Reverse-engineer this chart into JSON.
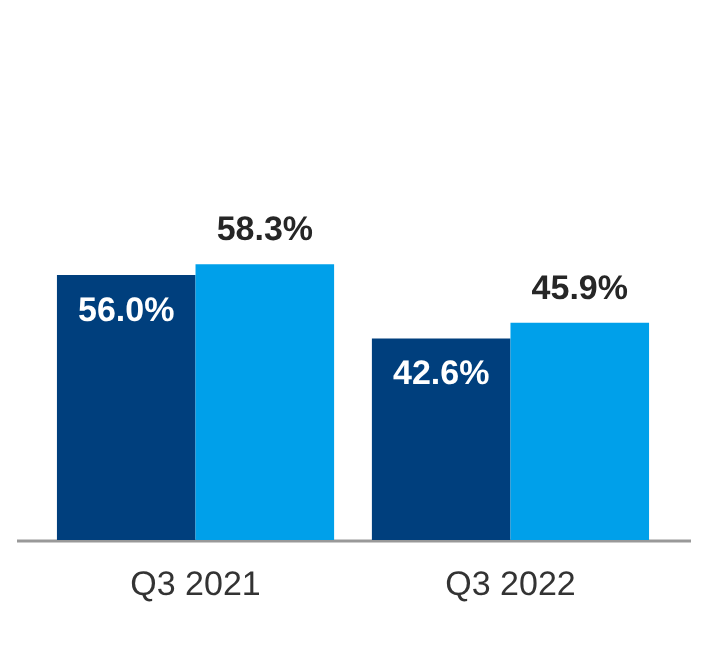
{
  "chart_data": {
    "type": "bar",
    "categories": [
      "Q3 2021",
      "Q3 2022"
    ],
    "series": [
      {
        "color": "#003f7d",
        "values": [
          56.0,
          42.6
        ],
        "value_labels": [
          "56.0%",
          "42.6%"
        ]
      },
      {
        "color": "#00a0ea",
        "values": [
          58.3,
          45.9
        ],
        "value_labels": [
          "58.3%",
          "45.9%"
        ]
      }
    ],
    "grid": false
  }
}
